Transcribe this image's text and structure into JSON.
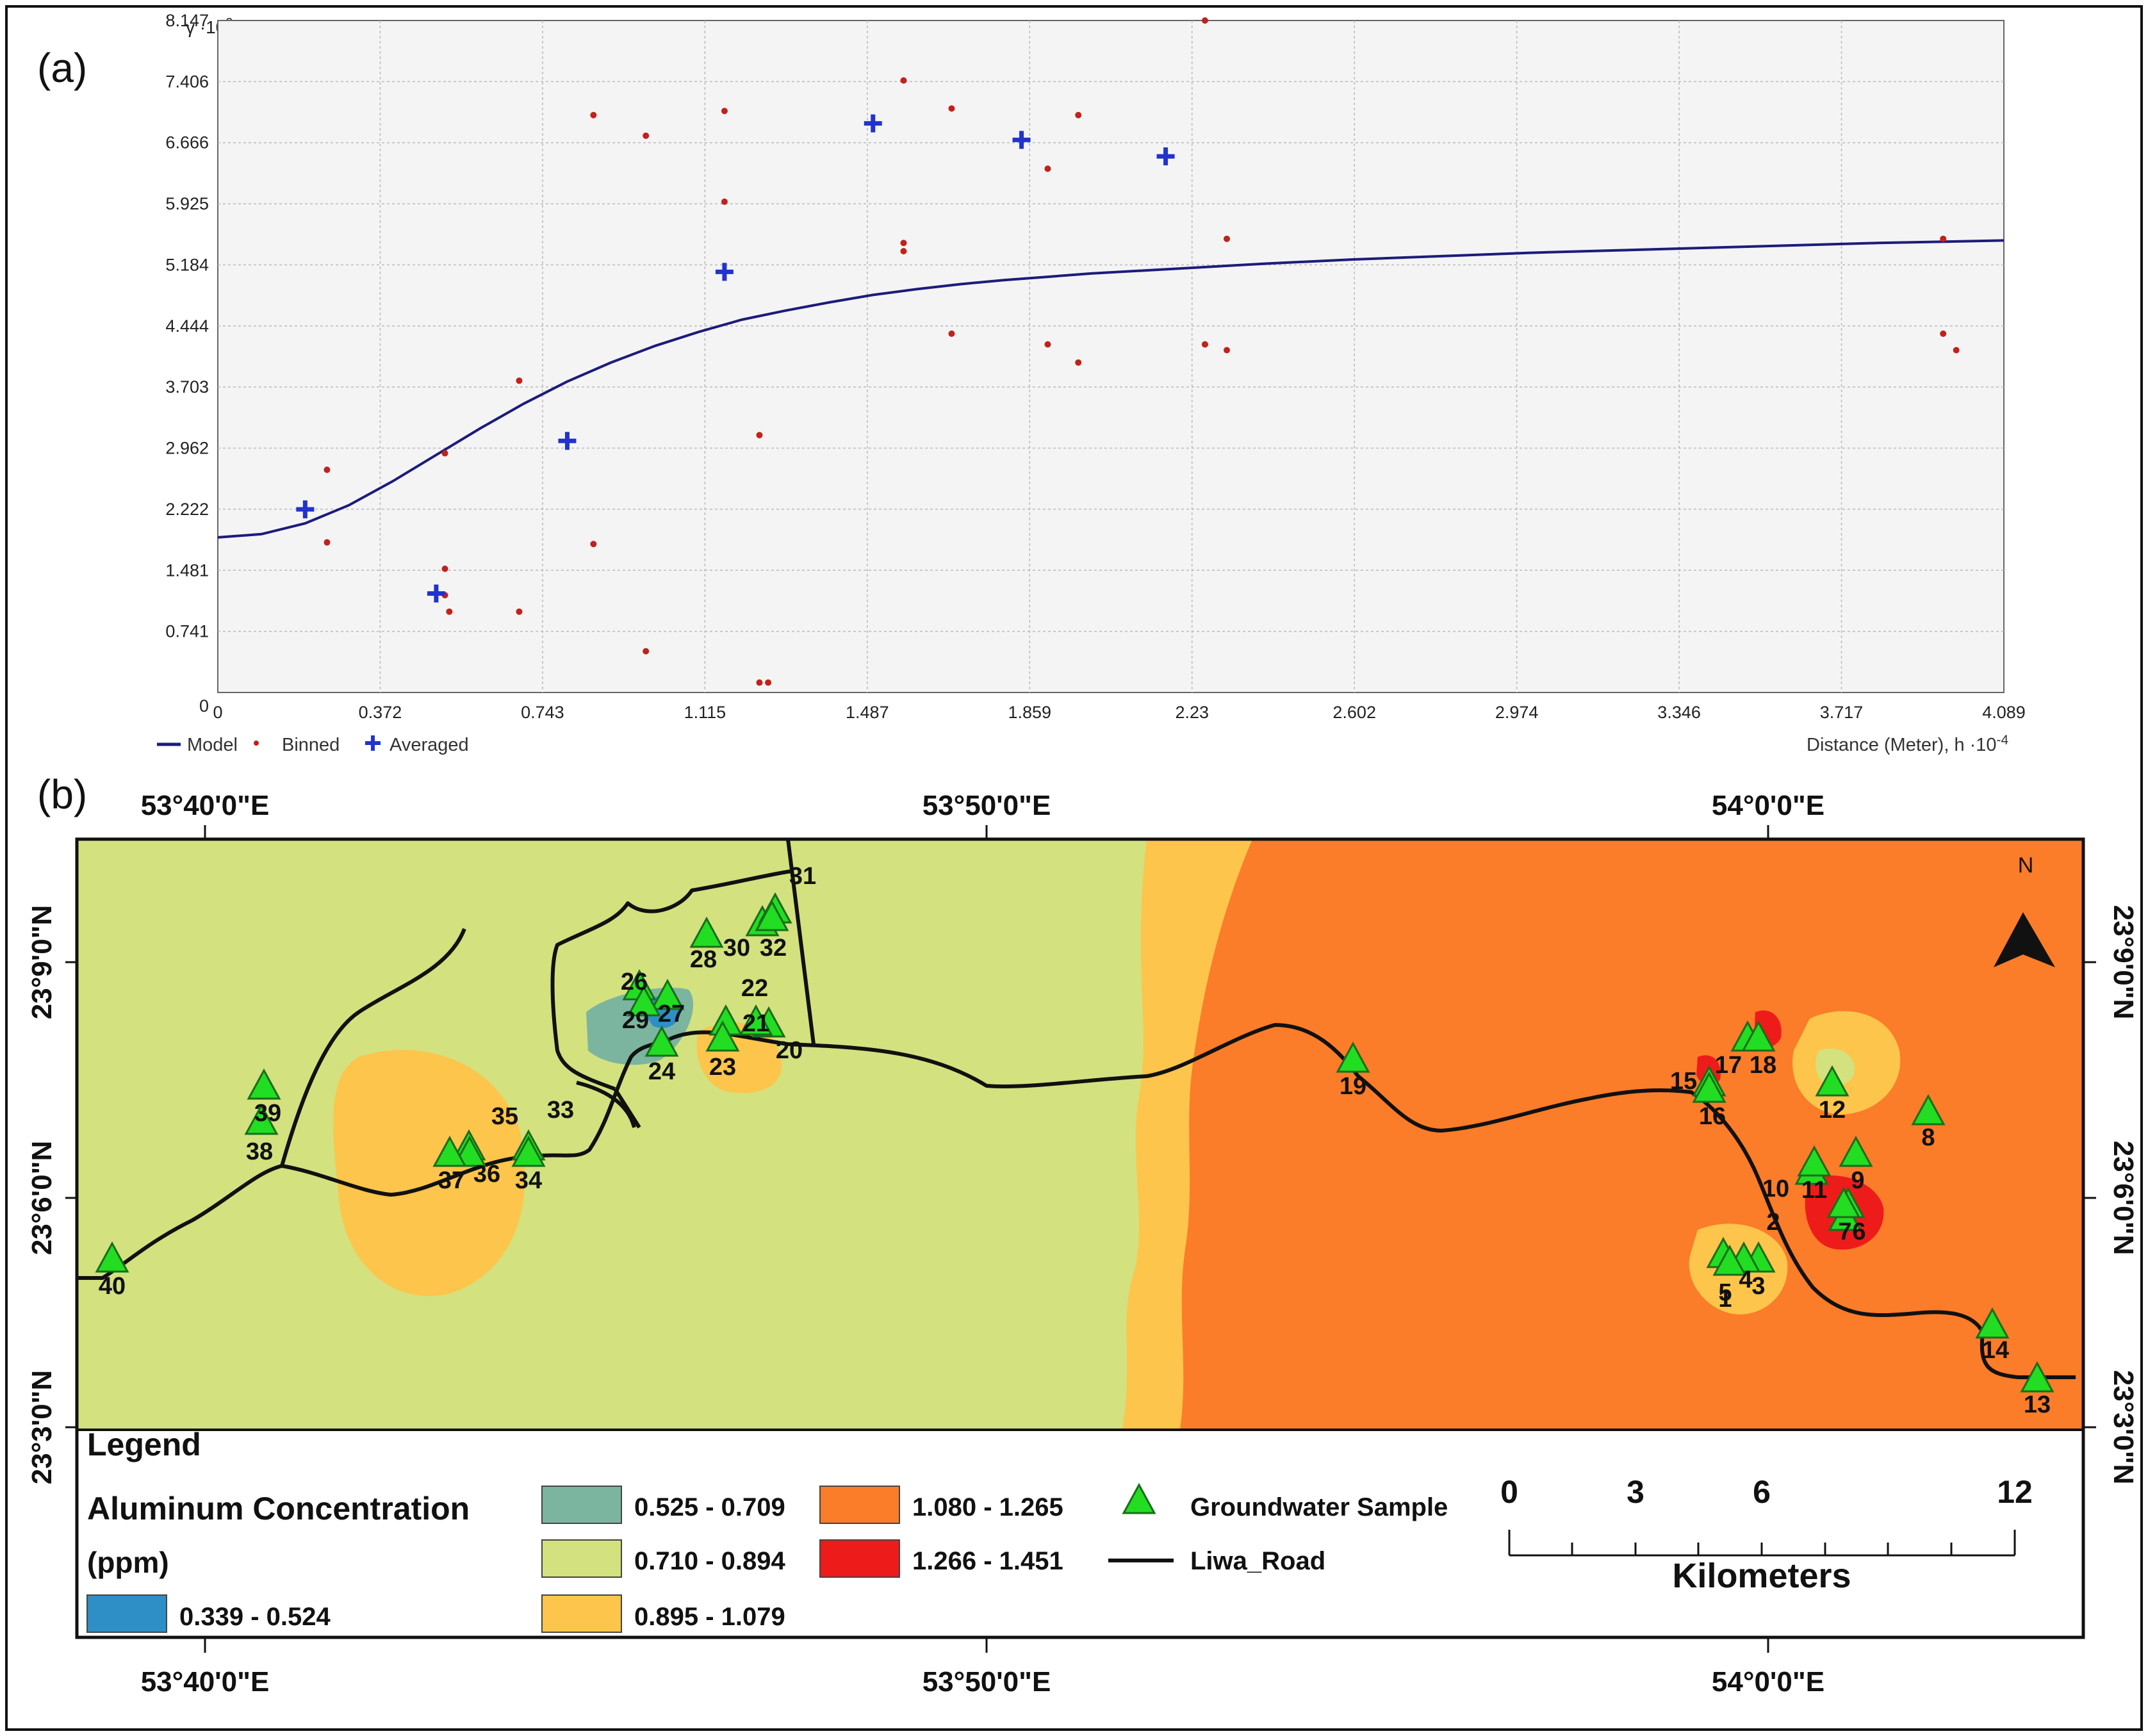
{
  "chart_data": [
    {
      "type": "scatter",
      "panel_label": "(a)",
      "ylabel": "γ ·10",
      "ylabel_exp": "2",
      "xlabel": "Distance (Meter), h ·10",
      "xlabel_exp": "-4",
      "xlim": [
        0,
        4.089
      ],
      "ylim": [
        0,
        8.147
      ],
      "x_ticks": [
        "0",
        "0.372",
        "0.743",
        "1.115",
        "1.487",
        "1.859",
        "2.23",
        "2.602",
        "2.974",
        "3.346",
        "3.717",
        "4.089"
      ],
      "y_ticks": [
        "0",
        "0.741",
        "1.481",
        "2.222",
        "2.962",
        "3.703",
        "4.444",
        "5.184",
        "5.925",
        "6.666",
        "7.406",
        "8.147"
      ],
      "legend": {
        "model": "Model",
        "binned": "Binned",
        "averaged": "Averaged",
        "position": "bottom-left"
      },
      "model_curve": {
        "x": [
          0,
          0.1,
          0.2,
          0.3,
          0.4,
          0.5,
          0.6,
          0.7,
          0.8,
          0.9,
          1.0,
          1.1,
          1.2,
          1.3,
          1.4,
          1.5,
          1.6,
          1.7,
          1.8,
          1.9,
          2.0,
          2.2,
          2.4,
          2.6,
          2.8,
          3.0,
          3.2,
          3.4,
          3.6,
          3.8,
          4.089
        ],
        "y": [
          1.88,
          1.92,
          2.05,
          2.27,
          2.56,
          2.88,
          3.2,
          3.5,
          3.77,
          4.0,
          4.2,
          4.37,
          4.52,
          4.63,
          4.73,
          4.82,
          4.89,
          4.95,
          5.0,
          5.04,
          5.08,
          5.14,
          5.2,
          5.25,
          5.29,
          5.33,
          5.36,
          5.39,
          5.42,
          5.45,
          5.48
        ]
      },
      "binned": {
        "x": [
          0.25,
          0.25,
          0.52,
          0.52,
          0.52,
          0.53,
          0.69,
          0.69,
          0.86,
          0.86,
          0.98,
          0.98,
          1.16,
          1.16,
          1.24,
          1.24,
          1.26,
          1.57,
          1.57,
          1.57,
          1.68,
          1.68,
          1.9,
          1.9,
          1.97,
          1.97,
          2.26,
          2.26,
          2.26,
          2.31,
          2.31,
          3.95,
          3.95,
          3.98
        ],
        "y": [
          2.7,
          1.82,
          2.9,
          1.5,
          1.18,
          0.98,
          3.78,
          0.98,
          7.0,
          1.8,
          6.75,
          0.5,
          7.05,
          5.95,
          3.12,
          0.12,
          0.12,
          7.42,
          5.45,
          5.35,
          7.08,
          4.35,
          6.35,
          4.22,
          7.0,
          4.0,
          8.147,
          4.22,
          4.22,
          5.5,
          4.15,
          5.5,
          4.35,
          4.15
        ],
        "note": "approximate positions read from the plot"
      },
      "averaged": {
        "x": [
          0.2,
          0.5,
          0.8,
          1.16,
          1.5,
          1.84,
          2.17
        ],
        "y": [
          2.22,
          1.2,
          3.05,
          5.1,
          6.9,
          6.7,
          6.5
        ]
      }
    },
    {
      "type": "map",
      "panel_label": "(b)",
      "top_lon_labels": [
        "53°40'0\"E",
        "53°50'0\"E",
        "54°0'0\"E"
      ],
      "bottom_lon_labels": [
        "53°40'0\"E",
        "53°50'0\"E",
        "54°0'0\"E"
      ],
      "lat_labels": [
        "23°9'0\"N",
        "23°6'0\"N",
        "23°3'0\"N"
      ],
      "north_label": "N",
      "samples": [
        {
          "id": "1"
        },
        {
          "id": "2"
        },
        {
          "id": "3"
        },
        {
          "id": "4"
        },
        {
          "id": "5"
        },
        {
          "id": "6"
        },
        {
          "id": "7"
        },
        {
          "id": "8"
        },
        {
          "id": "9"
        },
        {
          "id": "10"
        },
        {
          "id": "11"
        },
        {
          "id": "12"
        },
        {
          "id": "13"
        },
        {
          "id": "14"
        },
        {
          "id": "15"
        },
        {
          "id": "16"
        },
        {
          "id": "17"
        },
        {
          "id": "18"
        },
        {
          "id": "19"
        },
        {
          "id": "20"
        },
        {
          "id": "21"
        },
        {
          "id": "22"
        },
        {
          "id": "23"
        },
        {
          "id": "24"
        },
        {
          "id": "26"
        },
        {
          "id": "27"
        },
        {
          "id": "28"
        },
        {
          "id": "29"
        },
        {
          "id": "30"
        },
        {
          "id": "31"
        },
        {
          "id": "32"
        },
        {
          "id": "33"
        },
        {
          "id": "34"
        },
        {
          "id": "35"
        },
        {
          "id": "36"
        },
        {
          "id": "37"
        },
        {
          "id": "38"
        },
        {
          "id": "39"
        },
        {
          "id": "40"
        }
      ],
      "legend": {
        "title": "Legend",
        "layer_title": "Aluminum Concentration",
        "layer_unit": "(ppm)",
        "classes": [
          {
            "range": "0.339 - 0.524",
            "color": "#2e8fc6"
          },
          {
            "range": "0.525 - 0.709",
            "color": "#7bb5a0"
          },
          {
            "range": "0.710 - 0.894",
            "color": "#d3e17f"
          },
          {
            "range": "0.895 - 1.079",
            "color": "#fdc54b"
          },
          {
            "range": "1.080 - 1.265",
            "color": "#fb7c29"
          },
          {
            "range": "1.266 - 1.451",
            "color": "#ee1b1b"
          }
        ],
        "sample_label": "Groundwater Sample",
        "road_label": "Liwa_Road"
      },
      "scale_bar": {
        "ticks": [
          "0",
          "3",
          "6",
          "12"
        ],
        "unit": "Kilometers"
      }
    }
  ],
  "colors": {
    "model": "#1c1c7c",
    "binned": "#c0221c",
    "averaged": "#2233cc",
    "triangle": "#22dd22"
  }
}
